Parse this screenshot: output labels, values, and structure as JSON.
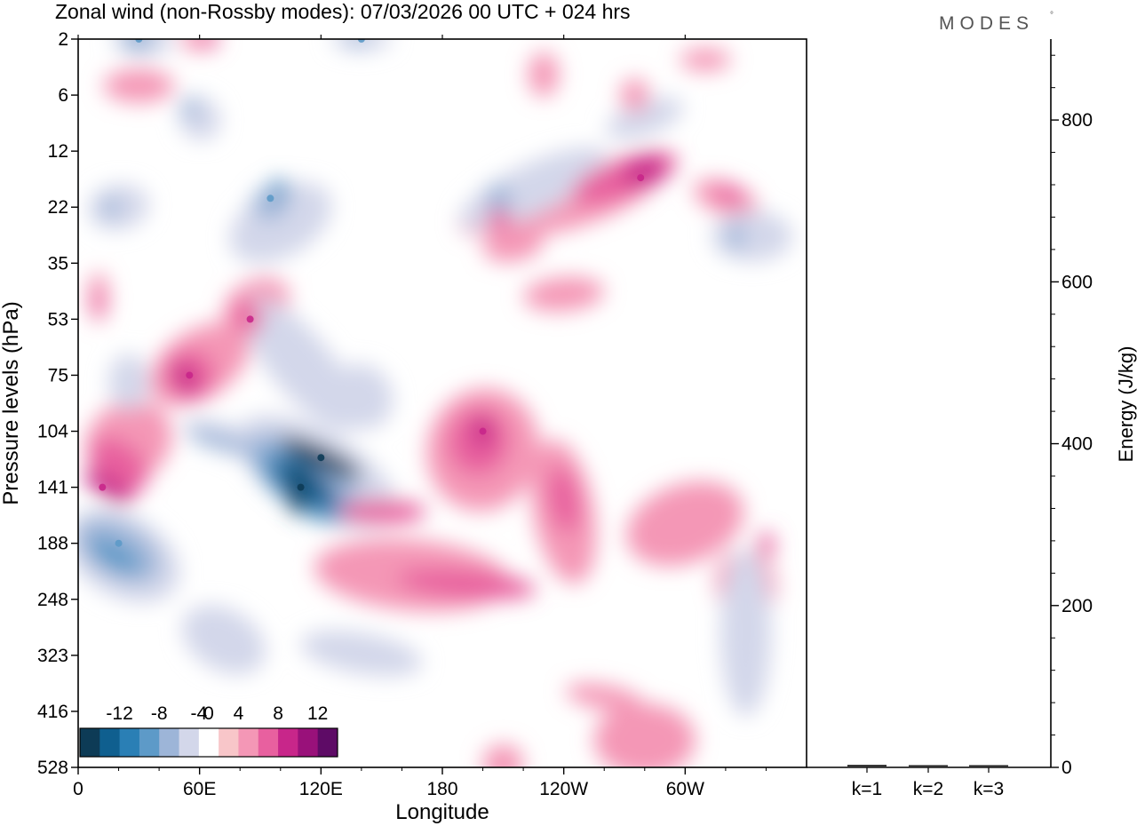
{
  "header": {
    "title": "Zonal wind (non-Rossby modes):  07/03/2026  00 UTC  + 024 hrs",
    "brand": "MODES",
    "brand_mark": "°"
  },
  "chart_data": [
    {
      "type": "heatmap",
      "title": "Zonal wind (non-Rossby modes)",
      "xlabel": "Longitude",
      "ylabel": "Pressure levels (hPa)",
      "x_ticks": [
        "0",
        "60E",
        "120E",
        "180",
        "120W",
        "60W"
      ],
      "x_tick_values": [
        0,
        60,
        120,
        180,
        240,
        300
      ],
      "xlim": [
        0,
        360
      ],
      "y_ticks": [
        "2",
        "6",
        "12",
        "22",
        "35",
        "53",
        "75",
        "104",
        "141",
        "188",
        "248",
        "323",
        "416",
        "528"
      ],
      "colorbar": {
        "labels": [
          "-12",
          "-8",
          "-4",
          "0",
          "4",
          "8",
          "12"
        ],
        "label_values": [
          -12,
          -8,
          -4,
          0,
          4,
          8,
          12
        ],
        "levels": [
          -14,
          -12,
          -10,
          -8,
          -6,
          -4,
          -2,
          2,
          4,
          6,
          8,
          10,
          12,
          14
        ],
        "colors": [
          "#0d3b56",
          "#0f5f8f",
          "#2a7fb5",
          "#5d9ac8",
          "#9db5d8",
          "#d3d7ea",
          "#ffffff",
          "#f8c6c9",
          "#f497b6",
          "#e8609f",
          "#c8268a",
          "#99117a",
          "#5e0b66"
        ]
      },
      "features": [
        {
          "lon": 110,
          "level": 141,
          "value": -14,
          "kind": "min"
        },
        {
          "lon": 120,
          "level": 120,
          "value": -14,
          "kind": "min"
        },
        {
          "lon": 200,
          "level": 104,
          "value": 8,
          "kind": "max"
        },
        {
          "lon": 20,
          "level": 188,
          "value": -8,
          "kind": "min"
        },
        {
          "lon": 12,
          "level": 141,
          "value": 8,
          "kind": "max"
        },
        {
          "lon": 55,
          "level": 75,
          "value": 8,
          "kind": "max"
        },
        {
          "lon": 85,
          "level": 53,
          "value": 8,
          "kind": "max"
        },
        {
          "lon": 278,
          "level": 16,
          "value": 8,
          "kind": "max"
        },
        {
          "lon": 95,
          "level": 20,
          "value": -8,
          "kind": "min"
        },
        {
          "lon": 30,
          "level": 2,
          "value": -8,
          "kind": "min"
        },
        {
          "lon": 140,
          "level": 2,
          "value": -8,
          "kind": "min"
        }
      ]
    },
    {
      "type": "bar",
      "ylabel": "Energy (J/kg)",
      "categories": [
        "k=1",
        "k=2",
        "k=3"
      ],
      "values": [
        2,
        1.5,
        1
      ],
      "ylim": [
        0,
        900
      ],
      "y_ticks": [
        0,
        200,
        400,
        600,
        800
      ]
    }
  ]
}
